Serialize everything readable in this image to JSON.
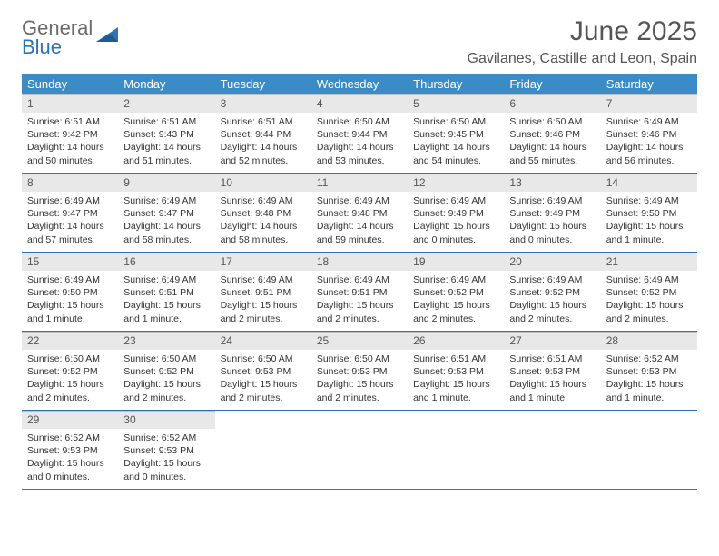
{
  "logo": {
    "general": "General",
    "blue": "Blue"
  },
  "title": "June 2025",
  "location": "Gavilanes, Castille and Leon, Spain",
  "colors": {
    "header_bg": "#3b8bc7",
    "header_text": "#ffffff",
    "daynum_bg": "#e8e8e8",
    "border": "#2e74b5",
    "body_text": "#333333"
  },
  "day_labels": [
    "Sunday",
    "Monday",
    "Tuesday",
    "Wednesday",
    "Thursday",
    "Friday",
    "Saturday"
  ],
  "weeks": [
    [
      {
        "n": "1",
        "sr": "6:51 AM",
        "ss": "9:42 PM",
        "dl": "14 hours and 50 minutes."
      },
      {
        "n": "2",
        "sr": "6:51 AM",
        "ss": "9:43 PM",
        "dl": "14 hours and 51 minutes."
      },
      {
        "n": "3",
        "sr": "6:51 AM",
        "ss": "9:44 PM",
        "dl": "14 hours and 52 minutes."
      },
      {
        "n": "4",
        "sr": "6:50 AM",
        "ss": "9:44 PM",
        "dl": "14 hours and 53 minutes."
      },
      {
        "n": "5",
        "sr": "6:50 AM",
        "ss": "9:45 PM",
        "dl": "14 hours and 54 minutes."
      },
      {
        "n": "6",
        "sr": "6:50 AM",
        "ss": "9:46 PM",
        "dl": "14 hours and 55 minutes."
      },
      {
        "n": "7",
        "sr": "6:49 AM",
        "ss": "9:46 PM",
        "dl": "14 hours and 56 minutes."
      }
    ],
    [
      {
        "n": "8",
        "sr": "6:49 AM",
        "ss": "9:47 PM",
        "dl": "14 hours and 57 minutes."
      },
      {
        "n": "9",
        "sr": "6:49 AM",
        "ss": "9:47 PM",
        "dl": "14 hours and 58 minutes."
      },
      {
        "n": "10",
        "sr": "6:49 AM",
        "ss": "9:48 PM",
        "dl": "14 hours and 58 minutes."
      },
      {
        "n": "11",
        "sr": "6:49 AM",
        "ss": "9:48 PM",
        "dl": "14 hours and 59 minutes."
      },
      {
        "n": "12",
        "sr": "6:49 AM",
        "ss": "9:49 PM",
        "dl": "15 hours and 0 minutes."
      },
      {
        "n": "13",
        "sr": "6:49 AM",
        "ss": "9:49 PM",
        "dl": "15 hours and 0 minutes."
      },
      {
        "n": "14",
        "sr": "6:49 AM",
        "ss": "9:50 PM",
        "dl": "15 hours and 1 minute."
      }
    ],
    [
      {
        "n": "15",
        "sr": "6:49 AM",
        "ss": "9:50 PM",
        "dl": "15 hours and 1 minute."
      },
      {
        "n": "16",
        "sr": "6:49 AM",
        "ss": "9:51 PM",
        "dl": "15 hours and 1 minute."
      },
      {
        "n": "17",
        "sr": "6:49 AM",
        "ss": "9:51 PM",
        "dl": "15 hours and 2 minutes."
      },
      {
        "n": "18",
        "sr": "6:49 AM",
        "ss": "9:51 PM",
        "dl": "15 hours and 2 minutes."
      },
      {
        "n": "19",
        "sr": "6:49 AM",
        "ss": "9:52 PM",
        "dl": "15 hours and 2 minutes."
      },
      {
        "n": "20",
        "sr": "6:49 AM",
        "ss": "9:52 PM",
        "dl": "15 hours and 2 minutes."
      },
      {
        "n": "21",
        "sr": "6:49 AM",
        "ss": "9:52 PM",
        "dl": "15 hours and 2 minutes."
      }
    ],
    [
      {
        "n": "22",
        "sr": "6:50 AM",
        "ss": "9:52 PM",
        "dl": "15 hours and 2 minutes."
      },
      {
        "n": "23",
        "sr": "6:50 AM",
        "ss": "9:52 PM",
        "dl": "15 hours and 2 minutes."
      },
      {
        "n": "24",
        "sr": "6:50 AM",
        "ss": "9:53 PM",
        "dl": "15 hours and 2 minutes."
      },
      {
        "n": "25",
        "sr": "6:50 AM",
        "ss": "9:53 PM",
        "dl": "15 hours and 2 minutes."
      },
      {
        "n": "26",
        "sr": "6:51 AM",
        "ss": "9:53 PM",
        "dl": "15 hours and 1 minute."
      },
      {
        "n": "27",
        "sr": "6:51 AM",
        "ss": "9:53 PM",
        "dl": "15 hours and 1 minute."
      },
      {
        "n": "28",
        "sr": "6:52 AM",
        "ss": "9:53 PM",
        "dl": "15 hours and 1 minute."
      }
    ],
    [
      {
        "n": "29",
        "sr": "6:52 AM",
        "ss": "9:53 PM",
        "dl": "15 hours and 0 minutes."
      },
      {
        "n": "30",
        "sr": "6:52 AM",
        "ss": "9:53 PM",
        "dl": "15 hours and 0 minutes."
      },
      null,
      null,
      null,
      null,
      null
    ]
  ],
  "labels": {
    "sunrise": "Sunrise: ",
    "sunset": "Sunset: ",
    "daylight": "Daylight: "
  }
}
